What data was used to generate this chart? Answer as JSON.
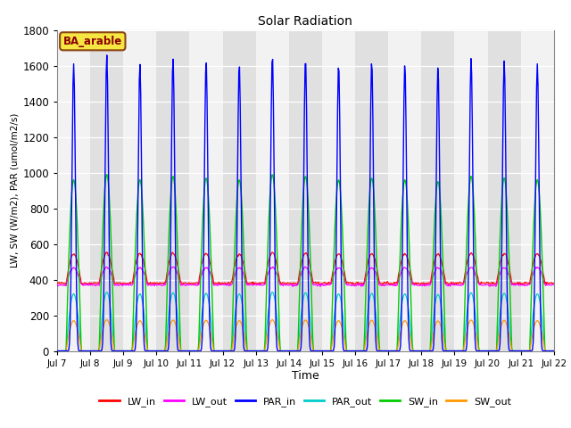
{
  "title": "Solar Radiation",
  "xlabel": "Time",
  "ylabel": "LW, SW (W/m2), PAR (umol/m2/s)",
  "annotation": "BA_arable",
  "annotation_bg": "#f5e642",
  "annotation_border": "#8B4513",
  "annotation_text_color": "#8B0000",
  "ylim": [
    0,
    1800
  ],
  "yticks": [
    0,
    200,
    400,
    600,
    800,
    1000,
    1200,
    1400,
    1600,
    1800
  ],
  "xtick_labels": [
    "Jul 7",
    "Jul 8",
    "Jul 9",
    "Jul 10",
    "Jul 11",
    "Jul 12",
    "Jul 13",
    "Jul 14",
    "Jul 15",
    "Jul 16",
    "Jul 17",
    "Jul 18",
    "Jul 19",
    "Jul 20",
    "Jul 21",
    "Jul 22"
  ],
  "colors": {
    "LW_in": "#ff0000",
    "LW_out": "#ff00ff",
    "PAR_in": "#0000ff",
    "PAR_out": "#00cccc",
    "SW_in": "#00cc00",
    "SW_out": "#ff9900"
  },
  "plot_bg_light": "#f0f0f0",
  "plot_bg_dark": "#d8d8d8",
  "n_days": 15,
  "dt_minutes": 30
}
